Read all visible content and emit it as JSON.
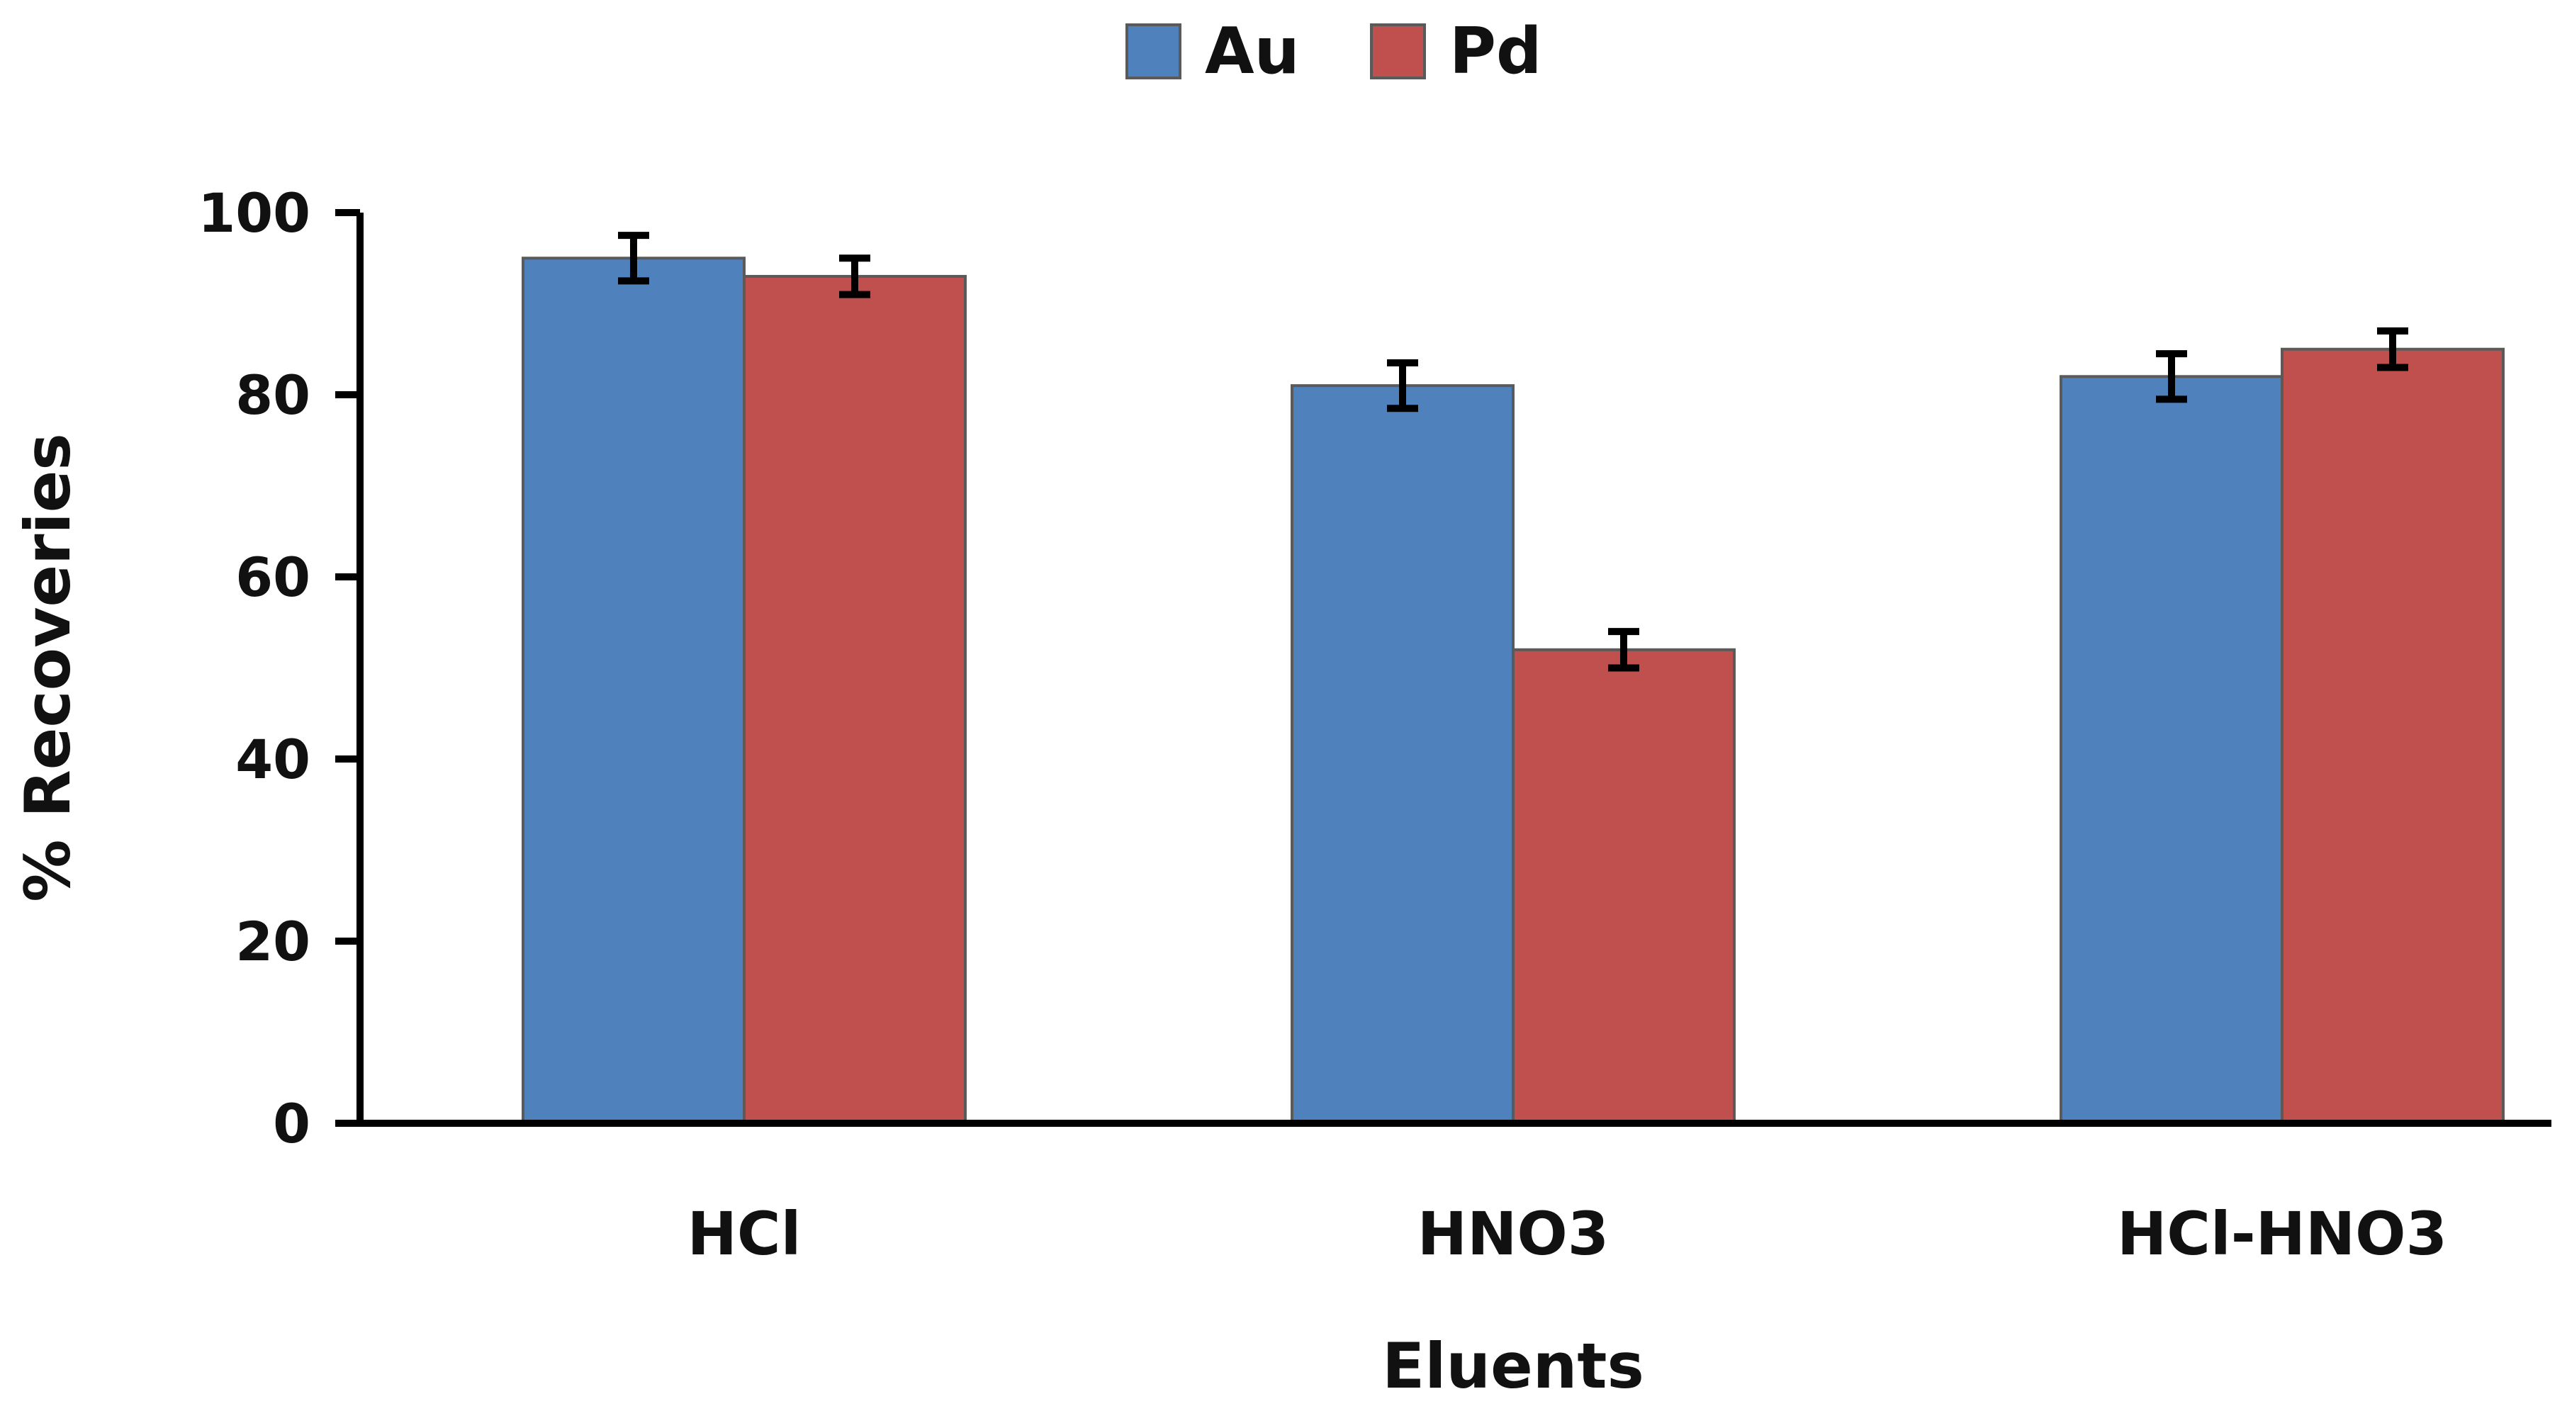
{
  "chart_data": {
    "type": "bar",
    "title": "",
    "xlabel": "Eluents",
    "ylabel": "% Recoveries",
    "categories": [
      "HCl",
      "HNO3",
      "HCl-HNO3"
    ],
    "series": [
      {
        "name": "Au",
        "values": [
          95,
          81,
          82
        ],
        "errors": [
          2.5,
          2.5,
          2.5
        ],
        "color": "#4F81BD"
      },
      {
        "name": "Pd",
        "values": [
          93,
          52,
          85
        ],
        "errors": [
          2.0,
          2.0,
          2.0
        ],
        "color": "#C0504D"
      }
    ],
    "ylim": [
      0,
      100
    ],
    "yticks": [
      "0",
      "20",
      "40",
      "60",
      "80",
      "100"
    ],
    "grid": false,
    "legend": "top-center"
  }
}
